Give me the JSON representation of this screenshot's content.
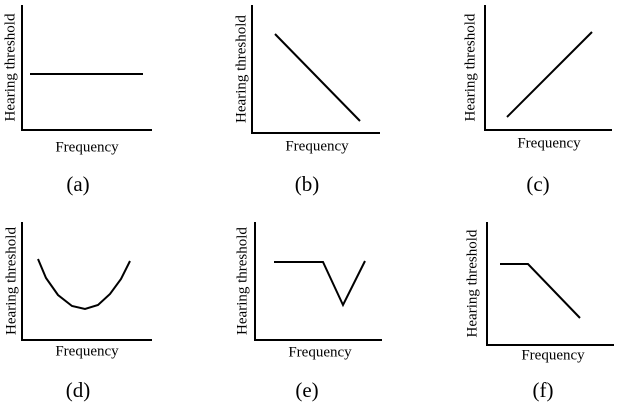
{
  "panels": [
    {
      "caption": "(a)",
      "y_label": "Hearing threshold",
      "x_label": "Frequency"
    },
    {
      "caption": "(b)",
      "y_label": "Hearing threshold",
      "x_label": "Frequency"
    },
    {
      "caption": "(c)",
      "y_label": "Hearing threshold",
      "x_label": "Frequency"
    },
    {
      "caption": "(d)",
      "y_label": "Hearing threshold",
      "x_label": "Frequency"
    },
    {
      "caption": "(e)",
      "y_label": "Hearing threshold",
      "x_label": "Frequency"
    },
    {
      "caption": "(f)",
      "y_label": "Hearing threshold",
      "x_label": "Frequency"
    }
  ]
}
